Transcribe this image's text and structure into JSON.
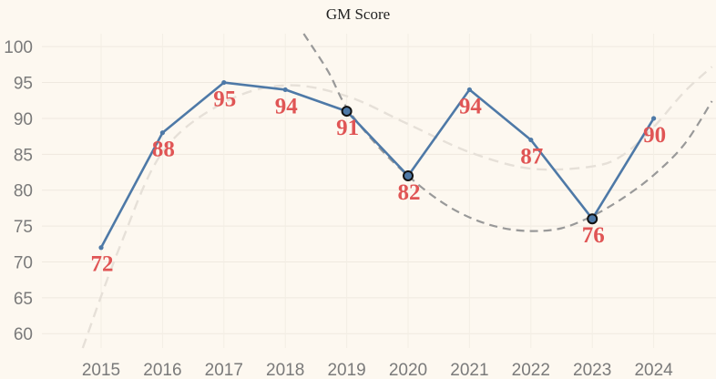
{
  "chart_data": {
    "type": "line",
    "title": "GM Score",
    "xlabel": "",
    "ylabel": "",
    "categories": [
      "2015",
      "2016",
      "2017",
      "2018",
      "2019",
      "2020",
      "2021",
      "2022",
      "2023",
      "2024"
    ],
    "series": [
      {
        "values": [
          72,
          88,
          95,
          94,
          91,
          82,
          94,
          87,
          76,
          90
        ],
        "data_labels": [
          "72",
          "88",
          "95",
          "94",
          "91",
          "82",
          "94",
          "87",
          "76",
          "90"
        ],
        "color": "#4e79a7",
        "highlighted_categories": [
          "2019",
          "2020",
          "2023"
        ]
      }
    ],
    "trendlines": [
      {
        "style": "dashed",
        "color": "#e6e0d8",
        "points": [
          [
            2014.7,
            58
          ],
          [
            2015.3,
            72
          ],
          [
            2016,
            85.3
          ],
          [
            2017,
            92.2
          ],
          [
            2018,
            94.6
          ],
          [
            2019,
            93.1
          ],
          [
            2020,
            89.2
          ],
          [
            2021,
            85.3
          ],
          [
            2022,
            83.0
          ],
          [
            2023,
            83.3
          ],
          [
            2023.5,
            84.9
          ],
          [
            2024,
            88.8
          ],
          [
            2024.5,
            93.7
          ],
          [
            2024.95,
            97.2
          ]
        ]
      },
      {
        "style": "dashed",
        "color": "#999999",
        "points": [
          [
            2018.3,
            101.8
          ],
          [
            2018.7,
            96.5
          ],
          [
            2019,
            91.5
          ],
          [
            2019.5,
            86.2
          ],
          [
            2020,
            82.0
          ],
          [
            2020.5,
            78.6
          ],
          [
            2021,
            76.2
          ],
          [
            2021.5,
            74.8
          ],
          [
            2022,
            74.3
          ],
          [
            2022.5,
            74.7
          ],
          [
            2023,
            76.4
          ],
          [
            2023.5,
            78.9
          ],
          [
            2024,
            82.1
          ],
          [
            2024.5,
            86.4
          ],
          [
            2024.95,
            92.4
          ]
        ]
      }
    ],
    "y_ticks": [
      60,
      65,
      70,
      75,
      80,
      85,
      90,
      95,
      100
    ],
    "ylim": [
      58,
      101.8
    ],
    "grid": true,
    "legend": "none"
  }
}
